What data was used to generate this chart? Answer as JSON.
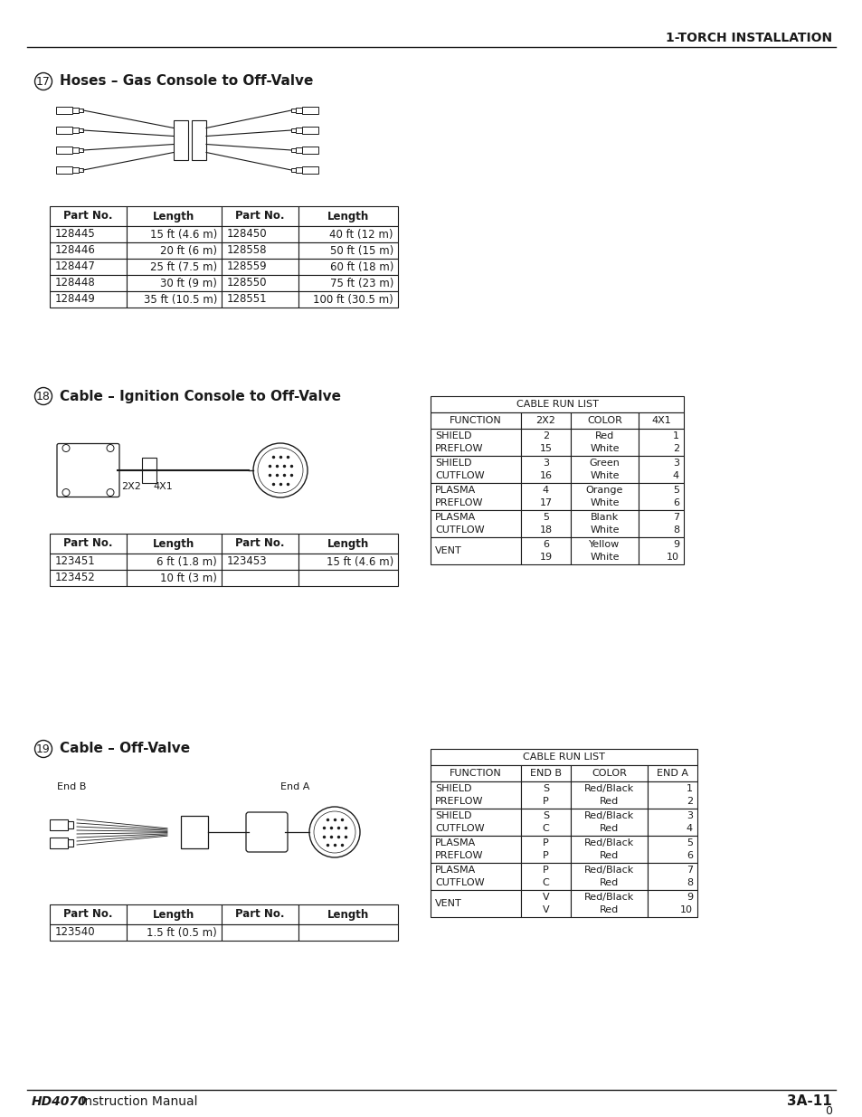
{
  "page_title": "1-TORCH INSTALLATION",
  "footer_left_bold": "HD4070",
  "footer_left_normal": " Instruction Manual",
  "footer_right": "3A-11",
  "footer_page": "0",
  "section17_num": "17",
  "section17_title": "Hoses – Gas Console to Off-Valve",
  "table17_headers": [
    "Part No.",
    "Length",
    "Part No.",
    "Length"
  ],
  "table17_rows": [
    [
      "128445",
      "15 ft (4.6 m)",
      "128450",
      "40 ft (12 m)"
    ],
    [
      "128446",
      "20 ft (6 m)",
      "128558",
      "50 ft (15 m)"
    ],
    [
      "128447",
      "25 ft (7.5 m)",
      "128559",
      "60 ft (18 m)"
    ],
    [
      "128448",
      "30 ft (9 m)",
      "128550",
      "75 ft (23 m)"
    ],
    [
      "128449",
      "35 ft (10.5 m)",
      "128551",
      "100 ft (30.5 m)"
    ]
  ],
  "section18_num": "18",
  "section18_title": "Cable – Ignition Console to Off-Valve",
  "table18_headers": [
    "Part No.",
    "Length",
    "Part No.",
    "Length"
  ],
  "table18_rows": [
    [
      "123451",
      "6 ft (1.8 m)",
      "123453",
      "15 ft (4.6 m)"
    ],
    [
      "123452",
      "10 ft (3 m)",
      "",
      ""
    ]
  ],
  "cable_run_list18_title": "CABLE RUN LIST",
  "cable_run_list18_headers": [
    "FUNCTION",
    "2X2",
    "COLOR",
    "4X1"
  ],
  "cable_run_list18_rows": [
    [
      "SHIELD\nPREFLOW",
      "2\n15",
      "Red\nWhite",
      "1\n2"
    ],
    [
      "SHIELD\nCUTFLOW",
      "3\n16",
      "Green\nWhite",
      "3\n4"
    ],
    [
      "PLASMA\nPREFLOW",
      "4\n17",
      "Orange\nWhite",
      "5\n6"
    ],
    [
      "PLASMA\nCUTFLOW",
      "5\n18",
      "Blank\nWhite",
      "7\n8"
    ],
    [
      "VENT",
      "6\n19",
      "Yellow\nWhite",
      "9\n10"
    ]
  ],
  "section19_num": "19",
  "section19_title": "Cable – Off-Valve",
  "table19_headers": [
    "Part No.",
    "Length",
    "Part No.",
    "Length"
  ],
  "table19_rows": [
    [
      "123540",
      "1.5 ft (0.5 m)",
      "",
      ""
    ]
  ],
  "cable_run_list19_title": "CABLE RUN LIST",
  "cable_run_list19_headers": [
    "FUNCTION",
    "END B",
    "COLOR",
    "END A"
  ],
  "cable_run_list19_rows": [
    [
      "SHIELD\nPREFLOW",
      "S\nP",
      "Red/Black\nRed",
      "1\n2"
    ],
    [
      "SHIELD\nCUTFLOW",
      "S\nC",
      "Red/Black\nRed",
      "3\n4"
    ],
    [
      "PLASMA\nPREFLOW",
      "P\nP",
      "Red/Black\nRed",
      "5\n6"
    ],
    [
      "PLASMA\nCUTFLOW",
      "P\nC",
      "Red/Black\nRed",
      "7\n8"
    ],
    [
      "VENT",
      "V\nV",
      "Red/Black\nRed",
      "9\n10"
    ]
  ],
  "bg_color": "#ffffff",
  "text_color": "#1a1a1a",
  "table_border_color": "#1a1a1a"
}
